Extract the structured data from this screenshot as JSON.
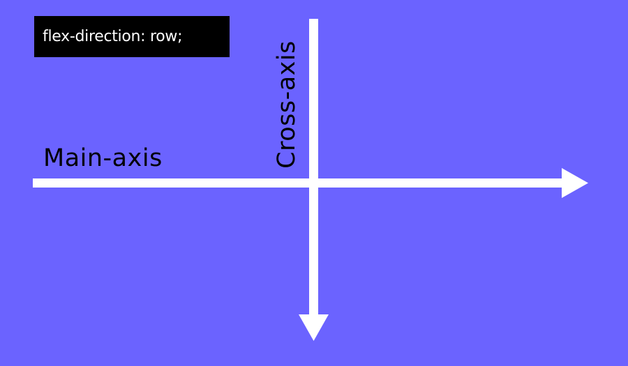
{
  "code_label": "flex-direction: row;",
  "main_axis_label": "Main-axis",
  "cross_axis_label": "Cross-axis",
  "colors": {
    "background": "#6b63ff",
    "arrow": "#ffffff",
    "code_box": "#000000",
    "code_text": "#ffffff",
    "label_text": "#000000"
  }
}
